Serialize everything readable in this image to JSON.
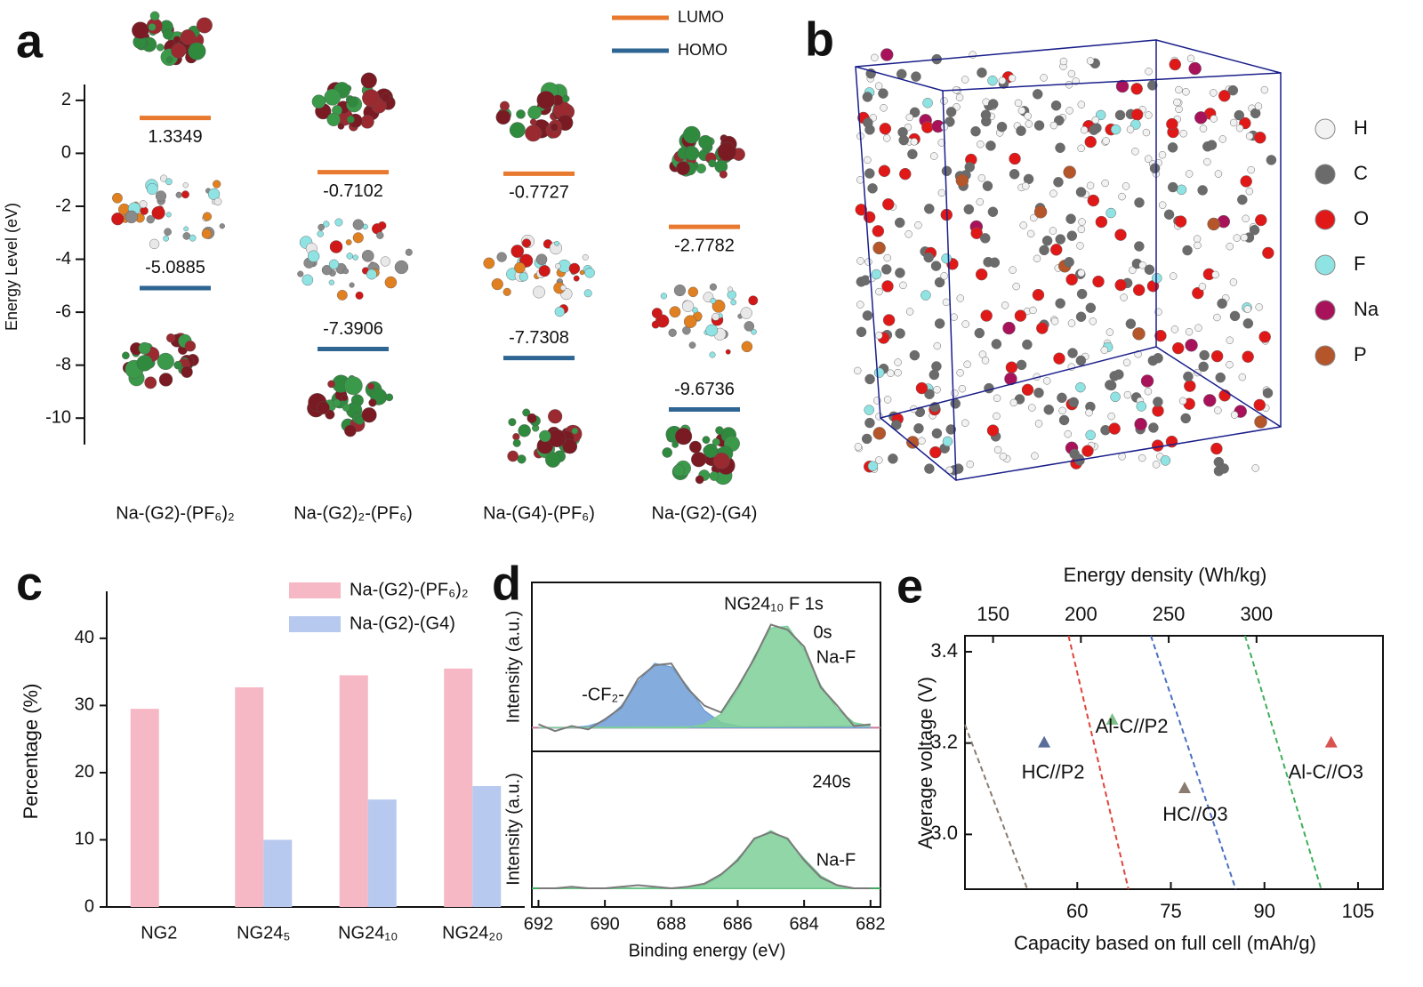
{
  "chart_data": [
    {
      "panel": "a",
      "type": "level",
      "ylabel": "Energy Level (eV)",
      "ylim": [
        -11,
        2.6
      ],
      "yticks": [
        2,
        0,
        -2,
        -4,
        -6,
        -8,
        -10
      ],
      "categories": [
        "Na-(G2)-(PF₆)₂",
        "Na-(G2)₂-(PF₆)",
        "Na-(G4)-(PF₆)",
        "Na-(G2)-(G4)"
      ],
      "series": [
        {
          "name": "LUMO",
          "color": "#e8792e",
          "values": [
            1.3349,
            -0.7102,
            -0.7727,
            -2.7782
          ]
        },
        {
          "name": "HOMO",
          "color": "#2e6592",
          "values": [
            -5.0885,
            -7.3906,
            -7.7308,
            -9.6736
          ]
        }
      ]
    },
    {
      "panel": "c",
      "type": "bar",
      "ylabel": "Percentage (%)",
      "ylim": [
        0,
        47
      ],
      "yticks": [
        0,
        10,
        20,
        30,
        40
      ],
      "categories": [
        "NG2",
        "NG24₅",
        "NG24₁₀",
        "NG24₂₀"
      ],
      "series": [
        {
          "name": "Na-(G2)-(PF₆)₂",
          "color": "#f5b8c4",
          "values": [
            29.5,
            32.7,
            34.5,
            35.5
          ]
        },
        {
          "name": "Na-(G2)-(G4)",
          "color": "#b7c9ef",
          "values": [
            null,
            10,
            16,
            18
          ]
        }
      ]
    },
    {
      "panel": "d",
      "type": "area",
      "xlabel": "Binding energy (eV)",
      "x": [
        692,
        691.5,
        691,
        690.5,
        690,
        689.5,
        689,
        688.5,
        688,
        687.5,
        687,
        686.5,
        686,
        685.5,
        685,
        684.5,
        684,
        683.5,
        683,
        682.5,
        682
      ],
      "xlim": [
        692.2,
        681.7
      ],
      "xticks": [
        692,
        690,
        688,
        686,
        684,
        682
      ],
      "panels": [
        {
          "ylabel": "Intensity (a.u.)",
          "ylim": [
            0,
            1
          ],
          "annotations": [
            "NG24₁₀ F 1s",
            "0s"
          ],
          "baseline": 0.14,
          "baseline_color": "#c77a9a",
          "series": [
            {
              "color": "#7a7a7a",
              "values": [
                0.16,
                0.12,
                0.15,
                0.13,
                0.19,
                0.26,
                0.43,
                0.51,
                0.52,
                0.37,
                0.27,
                0.23,
                0.38,
                0.55,
                0.75,
                0.72,
                0.62,
                0.38,
                0.27,
                0.15,
                0.16
              ]
            },
            {
              "name": "-CF₂-",
              "color": "#6f9fd8",
              "values": [
                0.14,
                0.14,
                0.14,
                0.15,
                0.18,
                0.27,
                0.41,
                0.52,
                0.5,
                0.38,
                0.24,
                0.17,
                0.15,
                0.14,
                0.14,
                0.14,
                0.14,
                0.14,
                0.14,
                0.14,
                0.14
              ]
            },
            {
              "name": "Na-F",
              "color": "#7ccf98",
              "values": [
                0.14,
                0.14,
                0.14,
                0.14,
                0.14,
                0.14,
                0.14,
                0.14,
                0.14,
                0.14,
                0.16,
                0.22,
                0.36,
                0.56,
                0.73,
                0.74,
                0.6,
                0.39,
                0.25,
                0.17,
                0.15
              ]
            }
          ]
        },
        {
          "ylabel": "Intensity (a.u.)",
          "ylim": [
            0,
            1
          ],
          "annotations": [
            "240s"
          ],
          "baseline": 0.12,
          "baseline_color": "#3faa60",
          "series": [
            {
              "color": "#7a7a7a",
              "values": [
                0.12,
                0.12,
                0.13,
                0.12,
                0.12,
                0.13,
                0.14,
                0.13,
                0.12,
                0.13,
                0.15,
                0.21,
                0.3,
                0.44,
                0.48,
                0.44,
                0.3,
                0.19,
                0.14,
                0.12,
                0.12
              ]
            },
            {
              "name": "Na-F",
              "color": "#7ccf98",
              "values": [
                0.12,
                0.12,
                0.12,
                0.12,
                0.12,
                0.12,
                0.12,
                0.12,
                0.12,
                0.12,
                0.14,
                0.2,
                0.31,
                0.43,
                0.49,
                0.43,
                0.31,
                0.2,
                0.14,
                0.12,
                0.12
              ]
            }
          ]
        }
      ]
    },
    {
      "panel": "e",
      "type": "scatter",
      "xlabel": "Capacity based on full cell (mAh/g)",
      "ylabel": "Average voltage (V)",
      "x2label": "Energy density (Wh/kg)",
      "xlim": [
        42,
        109
      ],
      "xticks": [
        60,
        75,
        90,
        105
      ],
      "x2lim": [
        134,
        372
      ],
      "x2ticks": [
        150,
        200,
        250,
        300
      ],
      "ylim": [
        2.88,
        3.435
      ],
      "yticks": [
        {
          "value": 3,
          "label": "3.0"
        },
        3.2,
        3.4
      ],
      "points": [
        {
          "name": "HC//P2",
          "color": "#5a6e9a",
          "x": 54.7,
          "y": 3.2
        },
        {
          "name": "Al-C//P2",
          "color": "#7fc08a",
          "x": 65.6,
          "y": 3.25
        },
        {
          "name": "HC//O3",
          "color": "#8a7b70",
          "x": 77.2,
          "y": 3.1
        },
        {
          "name": "Al-C//O3",
          "color": "#d9534f",
          "x": 100.7,
          "y": 3.2
        }
      ],
      "lines": [
        {
          "color": "#8a7b70",
          "x": [
            42,
            52
          ],
          "y": [
            3.24,
            2.88
          ]
        },
        {
          "color": "#e0443a",
          "x": [
            58.6,
            68.2
          ],
          "y": [
            3.435,
            2.88
          ]
        },
        {
          "color": "#4a6fc0",
          "x": [
            71.8,
            85.4
          ],
          "y": [
            3.435,
            2.88
          ]
        },
        {
          "color": "#3fae5a",
          "x": [
            86.9,
            99.1
          ],
          "y": [
            3.435,
            2.88
          ]
        }
      ]
    }
  ],
  "structure": {
    "panel": "b",
    "legend": [
      {
        "label": "H",
        "color": "#f2f2f2"
      },
      {
        "label": "C",
        "color": "#6b6b6b"
      },
      {
        "label": "O",
        "color": "#e01818"
      },
      {
        "label": "F",
        "color": "#8fe3e3"
      },
      {
        "label": "Na",
        "color": "#a8125a"
      },
      {
        "label": "P",
        "color": "#b5552a"
      }
    ]
  }
}
